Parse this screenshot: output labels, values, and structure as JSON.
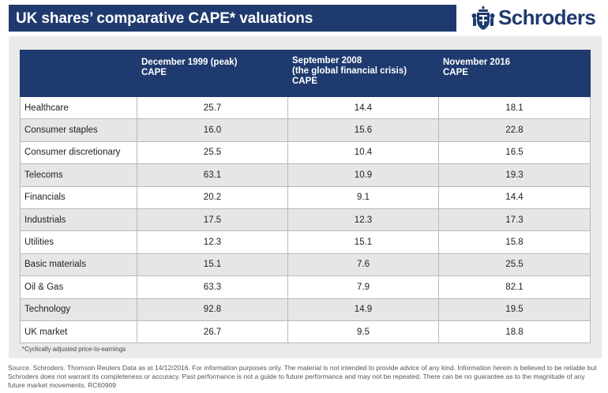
{
  "header": {
    "title": "UK shares’ comparative CAPE* valuations",
    "brand": "Schroders"
  },
  "table": {
    "columns": [
      {
        "line1": "",
        "line2": "",
        "line3": ""
      },
      {
        "line1": "December 1999 (peak)",
        "line2": "CAPE",
        "line3": ""
      },
      {
        "line1": "September 2008",
        "line2": "(the global financial crisis)",
        "line3": "CAPE"
      },
      {
        "line1": "November 2016",
        "line2": "CAPE",
        "line3": ""
      }
    ],
    "rows": [
      {
        "sector": "Healthcare",
        "dec1999": "25.7",
        "sep2008": "14.4",
        "nov2016": "18.1"
      },
      {
        "sector": "Consumer staples",
        "dec1999": "16.0",
        "sep2008": "15.6",
        "nov2016": "22.8"
      },
      {
        "sector": "Consumer discretionary",
        "dec1999": "25.5",
        "sep2008": "10.4",
        "nov2016": "16.5"
      },
      {
        "sector": "Telecoms",
        "dec1999": "63.1",
        "sep2008": "10.9",
        "nov2016": "19.3"
      },
      {
        "sector": "Financials",
        "dec1999": "20.2",
        "sep2008": "9.1",
        "nov2016": "14.4"
      },
      {
        "sector": "Industrials",
        "dec1999": "17.5",
        "sep2008": "12.3",
        "nov2016": "17.3"
      },
      {
        "sector": "Utilities",
        "dec1999": "12.3",
        "sep2008": "15.1",
        "nov2016": "15.8"
      },
      {
        "sector": "Basic materials",
        "dec1999": "15.1",
        "sep2008": "7.6",
        "nov2016": "25.5"
      },
      {
        "sector": "Oil & Gas",
        "dec1999": "63.3",
        "sep2008": "7.9",
        "nov2016": "82.1"
      },
      {
        "sector": "Technology",
        "dec1999": "92.8",
        "sep2008": "14.9",
        "nov2016": "19.5"
      },
      {
        "sector": "UK market",
        "dec1999": "26.7",
        "sep2008": "9.5",
        "nov2016": "18.8"
      }
    ]
  },
  "footnote": "*Cyclically adjusted price-to-earnings",
  "source": {
    "line1": "Source. Schroders. Thomson Reuters Data as at 14/12/2016. For information purposes only. The material is not intended to provide advice of any kind. Information herein is believed to be reliable but",
    "line2": "Schroders does not warrant its completeness or accuracy. Past performance is not a guide to future performance and may not be repeated. There can be no guarantee as to the magnitude of any",
    "line3": "future market movements. RC60909"
  },
  "colors": {
    "brand_navy": "#1f3a6e",
    "panel_grey": "#eaeaea",
    "row_alt_grey": "#e6e6e6"
  },
  "icons": {
    "logo_crest": "schroders-crest-icon"
  }
}
